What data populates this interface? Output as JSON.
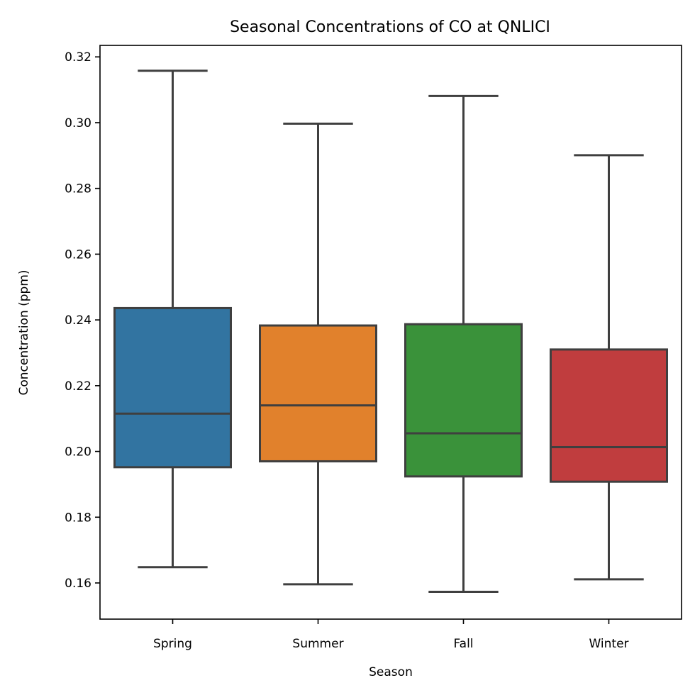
{
  "chart_data": {
    "type": "box",
    "title": "Seasonal Concentrations of CO at QNLICI",
    "xlabel": "Season",
    "ylabel": "Concentration (ppm)",
    "categories": [
      "Spring",
      "Summer",
      "Fall",
      "Winter"
    ],
    "colors": [
      "#3274a1",
      "#e1812c",
      "#3a923a",
      "#c03d3e"
    ],
    "edge_color": "#3f3f3f",
    "ylim": [
      0.149,
      0.3235
    ],
    "yticks": [
      0.16,
      0.18,
      0.2,
      0.22,
      0.24,
      0.26,
      0.28,
      0.3,
      0.32
    ],
    "ytick_labels": [
      "0.16",
      "0.18",
      "0.20",
      "0.22",
      "0.24",
      "0.26",
      "0.28",
      "0.30",
      "0.32"
    ],
    "grid": false,
    "boxes": [
      {
        "name": "Spring",
        "whisker_low": 0.1648,
        "q1": 0.1952,
        "median": 0.2115,
        "q3": 0.2436,
        "whisker_high": 0.3158
      },
      {
        "name": "Summer",
        "whisker_low": 0.1596,
        "q1": 0.197,
        "median": 0.214,
        "q3": 0.2383,
        "whisker_high": 0.2997
      },
      {
        "name": "Fall",
        "whisker_low": 0.1573,
        "q1": 0.1924,
        "median": 0.2055,
        "q3": 0.2387,
        "whisker_high": 0.3081
      },
      {
        "name": "Winter",
        "whisker_low": 0.1611,
        "q1": 0.1908,
        "median": 0.2013,
        "q3": 0.231,
        "whisker_high": 0.2901
      }
    ]
  }
}
